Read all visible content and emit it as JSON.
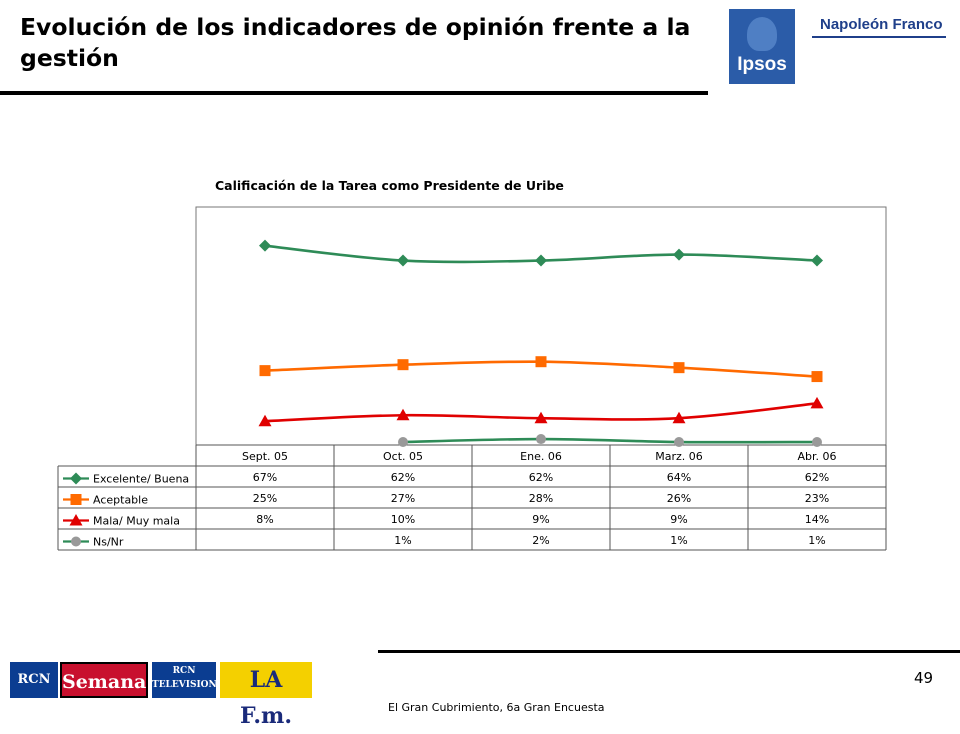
{
  "page": {
    "title": "Evolución de los indicadores de opinión frente a la gestión",
    "page_number": "49",
    "footer": "El Gran Cubrimiento, 6a Gran Encuesta"
  },
  "logos": {
    "ipsos": "Ipsos",
    "napoleon_franco": "Napoleón Franco",
    "rcn_radio": "RCN RADIO",
    "semana": "Semana",
    "rcn_tv": "RCN TELEVISION",
    "lafm": "LA F.m."
  },
  "chart_data": {
    "type": "line",
    "title": "Calificación de la Tarea como Presidente de Uribe",
    "categories": [
      "Sept. 05",
      "Oct. 05",
      "Ene. 06",
      "Marz. 06",
      "Abr. 06"
    ],
    "ylim": [
      0,
      80
    ],
    "xlabel": "",
    "ylabel": "",
    "series": [
      {
        "name": "Excelente/ Buena",
        "values": [
          67,
          62,
          62,
          64,
          62
        ],
        "labels": [
          "67%",
          "62%",
          "62%",
          "64%",
          "62%"
        ],
        "color": "#2e8b57",
        "marker": "diamond"
      },
      {
        "name": "Aceptable",
        "values": [
          25,
          27,
          28,
          26,
          23
        ],
        "labels": [
          "25%",
          "27%",
          "28%",
          "26%",
          "23%"
        ],
        "color": "#ff6a00",
        "marker": "square"
      },
      {
        "name": "Mala/ Muy mala",
        "values": [
          8,
          10,
          9,
          9,
          14
        ],
        "labels": [
          "8%",
          "10%",
          "9%",
          "9%",
          "14%"
        ],
        "color": "#e00000",
        "marker": "triangle"
      },
      {
        "name": "Ns/Nr",
        "values": [
          null,
          1,
          2,
          1,
          1
        ],
        "labels": [
          "",
          "1%",
          "2%",
          "1%",
          "1%"
        ],
        "color": "#2e8b57",
        "markerColor": "#999999",
        "marker": "circle"
      }
    ]
  }
}
